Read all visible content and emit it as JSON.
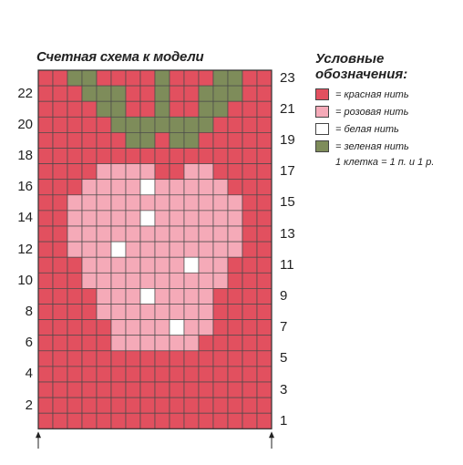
{
  "title": "Счетная схема к модели",
  "legend": {
    "title_line1": "Условные",
    "title_line2": "обозначения:",
    "items": [
      {
        "key": "R",
        "label": "= красная нить",
        "color": "#e2505f"
      },
      {
        "key": "P",
        "label": "= розовая нить",
        "color": "#f5aab8"
      },
      {
        "key": "W",
        "label": "= белая нить",
        "color": "#ffffff"
      },
      {
        "key": "G",
        "label": "= зеленая нить",
        "color": "#7e8c5a"
      }
    ],
    "note": "1 клетка = 1 п. и 1 р."
  },
  "row_numbers_left": [
    "22",
    "20",
    "18",
    "16",
    "14",
    "12",
    "10",
    "8",
    "6",
    "4",
    "2"
  ],
  "row_numbers_right": [
    "23",
    "21",
    "19",
    "17",
    "15",
    "13",
    "11",
    "9",
    "7",
    "5",
    "3",
    "1"
  ],
  "chart_data": {
    "type": "knitting-chart",
    "columns": 16,
    "rows": 23,
    "colors": {
      "R": "#e2505f",
      "P": "#f5aab8",
      "W": "#ffffff",
      "G": "#7e8c5a"
    },
    "pattern": [
      "RRGGRRRRGRRRGGRR",
      "RRRGGGRRGRRGGGRR",
      "RRRRGGRRGRRGGRRR",
      "RRRRRGGGGGGGRRRR",
      "RRRRRRGGRGGRRRRR",
      "RRRRRRRRRRRRRRRR",
      "RRRRPPPPRRPPRRRR",
      "RRRPPPPWPPPPPRRR",
      "RRPPPPPPPPPPPPRR",
      "RRPPPPPWPPPPPPRR",
      "RRPPPPPPPPPPPPRR",
      "RRPPPWPPPPPPPPRR",
      "RRRPPPPPPPWPPRRR",
      "RRRPPPPPPPPPPRRR",
      "RRRRPPPWPPPPRRRR",
      "RRRRPPPPPPPPRRRR",
      "RRRRRPPPPWPPRRRR",
      "RRRRRPPPPPPRRRRR",
      "RRRRRRRRRRRRRRRR",
      "RRRRRRRRRRRRRRRR",
      "RRRRRRRRRRRRRRRR",
      "RRRRRRRRRRRRRRRR",
      "RRRRRRRRRRRRRRRR"
    ]
  }
}
